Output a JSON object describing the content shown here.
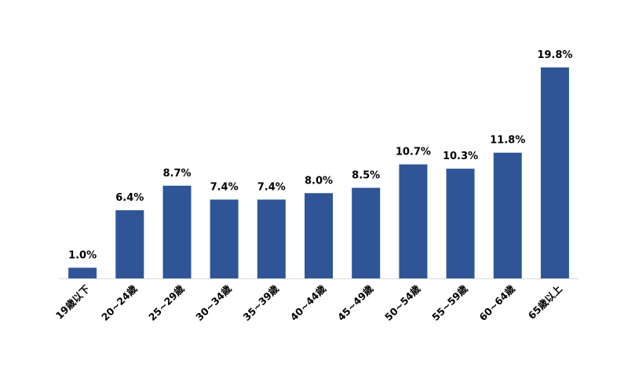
{
  "chart_data": {
    "type": "bar",
    "categories": [
      "19歳以下",
      "20~24歳",
      "25~29歳",
      "30~34歳",
      "35~39歳",
      "40~44歳",
      "45~49歳",
      "50~54歳",
      "55~59歳",
      "60~64歳",
      "65歳以上"
    ],
    "values": [
      1.0,
      6.4,
      8.7,
      7.4,
      7.4,
      8.0,
      8.5,
      10.7,
      10.3,
      11.8,
      19.8
    ],
    "data_labels": [
      "1.0%",
      "6.4%",
      "8.7%",
      "7.4%",
      "7.4%",
      "8.0%",
      "8.5%",
      "10.7%",
      "10.3%",
      "11.8%",
      "19.8%"
    ],
    "ylim": [
      0,
      19.8
    ],
    "grid": false,
    "legend": "none",
    "bar_color": "#2F5597"
  }
}
